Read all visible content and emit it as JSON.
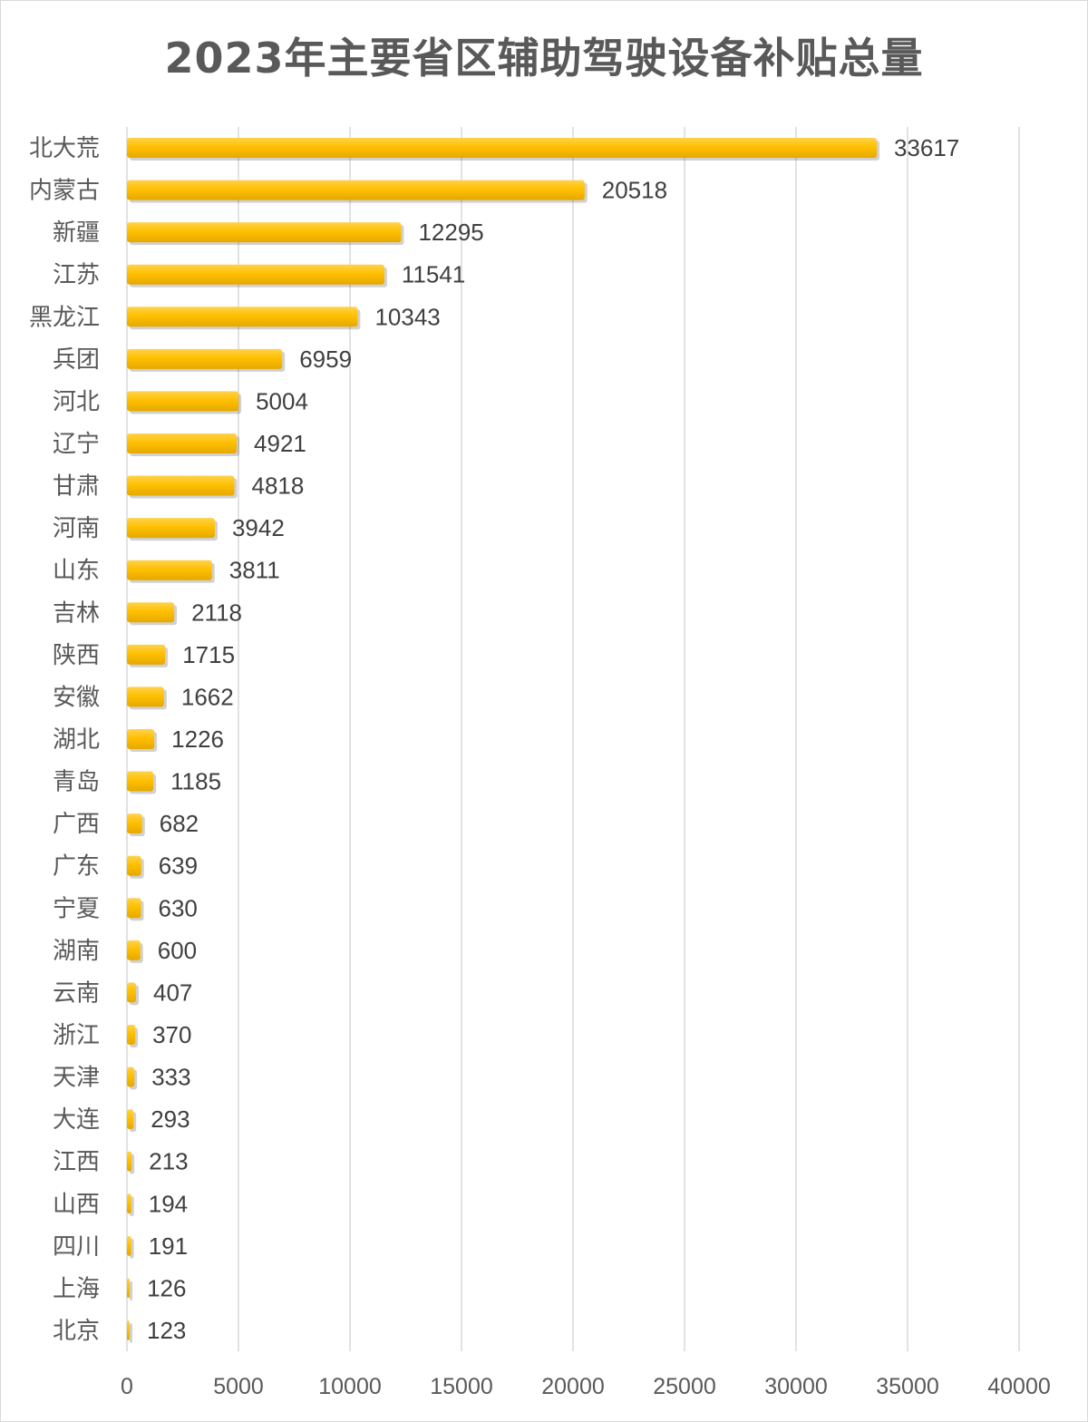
{
  "chart_data": {
    "type": "bar",
    "orientation": "horizontal",
    "title": "2023年主要省区辅助驾驶设备补贴总量",
    "categories": [
      "北大荒",
      "内蒙古",
      "新疆",
      "江苏",
      "黑龙江",
      "兵团",
      "河北",
      "辽宁",
      "甘肃",
      "河南",
      "山东",
      "吉林",
      "陕西",
      "安徽",
      "湖北",
      "青岛",
      "广西",
      "广东",
      "宁夏",
      "湖南",
      "云南",
      "浙江",
      "天津",
      "大连",
      "江西",
      "山西",
      "四川",
      "上海",
      "北京"
    ],
    "values": [
      33617,
      20518,
      12295,
      11541,
      10343,
      6959,
      5004,
      4921,
      4818,
      3942,
      3811,
      2118,
      1715,
      1662,
      1226,
      1185,
      682,
      639,
      630,
      600,
      407,
      370,
      333,
      293,
      213,
      194,
      191,
      126,
      123
    ],
    "xlim": [
      0,
      40000
    ],
    "xticks": [
      0,
      5000,
      10000,
      15000,
      20000,
      25000,
      30000,
      35000,
      40000
    ],
    "grid": "vertical",
    "legend": "none",
    "bar_color": "#FFC000",
    "bar_color_light": "#FFD24D",
    "bar_color_dark": "#E6A800",
    "grid_color": "#d9d9d9"
  }
}
